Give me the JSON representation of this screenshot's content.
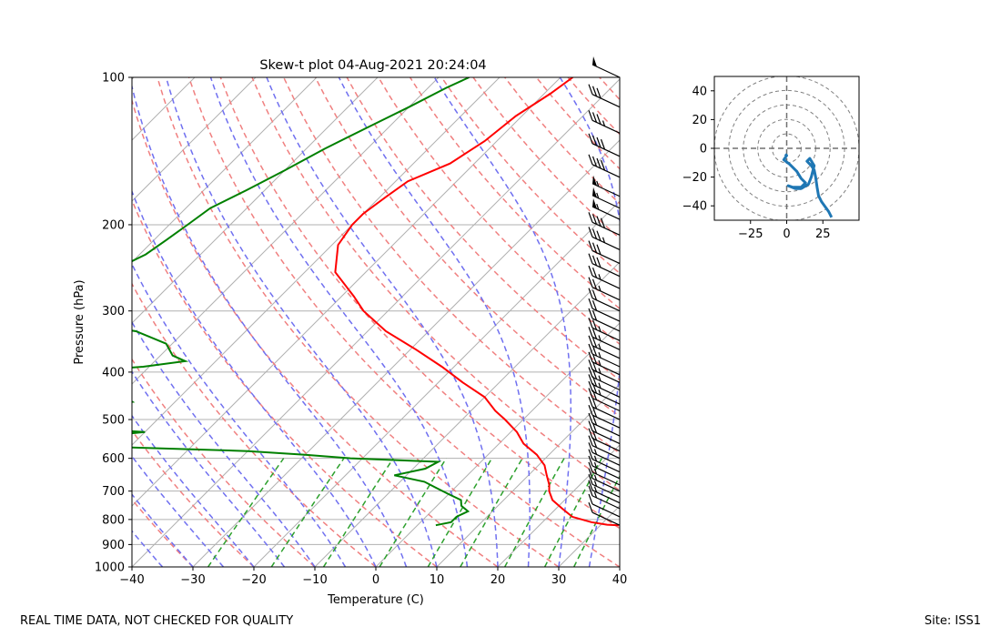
{
  "chart_data": [
    {
      "type": "skew-t",
      "title": "Skew-t plot 04-Aug-2021 20:24:04",
      "xlabel": "Temperature (C)",
      "ylabel": "Pressure (hPa)",
      "xlim": [
        -40,
        40
      ],
      "ylim": [
        1000,
        100
      ],
      "y_scale": "log",
      "x_ticks": [
        -40,
        -30,
        -20,
        -10,
        0,
        10,
        20,
        30,
        40
      ],
      "y_ticks": [
        100,
        200,
        300,
        400,
        500,
        600,
        700,
        800,
        900,
        1000
      ],
      "grid": true,
      "series": [
        {
          "color": "#ff0000",
          "points": [
            [
              100,
              -48
            ],
            [
              108,
              -49
            ],
            [
              120,
              -51
            ],
            [
              135,
              -52
            ],
            [
              150,
              -54
            ],
            [
              163,
              -58
            ],
            [
              175,
              -59
            ],
            [
              190,
              -60
            ],
            [
              200,
              -60
            ],
            [
              220,
              -59
            ],
            [
              250,
              -55
            ],
            [
              280,
              -48
            ],
            [
              300,
              -44
            ],
            [
              330,
              -37
            ],
            [
              360,
              -29
            ],
            [
              390,
              -22
            ],
            [
              420,
              -16
            ],
            [
              450,
              -10
            ],
            [
              480,
              -6
            ],
            [
              500,
              -3
            ],
            [
              530,
              1
            ],
            [
              560,
              4
            ],
            [
              590,
              8
            ],
            [
              600,
              9
            ],
            [
              620,
              11
            ],
            [
              650,
              13
            ],
            [
              680,
              15
            ],
            [
              700,
              16
            ],
            [
              730,
              18
            ],
            [
              760,
              21
            ],
            [
              790,
              24
            ],
            [
              810,
              28
            ],
            [
              820,
              31
            ],
            [
              822,
              33
            ]
          ]
        },
        {
          "color": "#008000",
          "points": [
            [
              100,
              -65
            ],
            [
              105,
              -67
            ],
            [
              115,
              -70
            ],
            [
              125,
              -73
            ],
            [
              140,
              -77
            ],
            [
              155,
              -80
            ],
            [
              170,
              -83
            ],
            [
              185,
              -86
            ],
            [
              200,
              -87
            ],
            [
              215,
              -88
            ],
            [
              230,
              -89
            ],
            [
              250,
              -92
            ],
            [
              270,
              -96
            ],
            [
              290,
              -98
            ],
            [
              300,
              -99
            ],
            [
              310,
              -95
            ],
            [
              320,
              -86
            ],
            [
              330,
              -78
            ],
            [
              350,
              -71
            ],
            [
              370,
              -68
            ],
            [
              380,
              -65
            ],
            [
              390,
              -71
            ],
            [
              400,
              -83
            ],
            [
              415,
              -88
            ],
            [
              430,
              -90
            ],
            [
              445,
              -70
            ],
            [
              460,
              -67
            ],
            [
              475,
              -75
            ],
            [
              490,
              -78
            ],
            [
              500,
              -80
            ],
            [
              510,
              -66
            ],
            [
              520,
              -72
            ],
            [
              530,
              -60
            ],
            [
              540,
              -66
            ],
            [
              550,
              -70
            ],
            [
              560,
              -75
            ],
            [
              570,
              -60
            ],
            [
              580,
              -40
            ],
            [
              590,
              -30
            ],
            [
              600,
              -22
            ],
            [
              610,
              -7
            ],
            [
              630,
              -8
            ],
            [
              650,
              -12
            ],
            [
              670,
              -6
            ],
            [
              690,
              -3
            ],
            [
              710,
              0
            ],
            [
              730,
              3
            ],
            [
              750,
              4
            ],
            [
              770,
              6
            ],
            [
              790,
              5
            ],
            [
              810,
              5
            ],
            [
              822,
              3
            ]
          ]
        }
      ],
      "wind_barbs": [
        {
          "p": 100,
          "speed": 50
        },
        {
          "p": 115,
          "speed": 30
        },
        {
          "p": 130,
          "speed": 35
        },
        {
          "p": 145,
          "speed": 40
        },
        {
          "p": 160,
          "speed": 40
        },
        {
          "p": 175,
          "speed": 55
        },
        {
          "p": 185,
          "speed": 55
        },
        {
          "p": 195,
          "speed": 55
        },
        {
          "p": 210,
          "speed": 40
        },
        {
          "p": 225,
          "speed": 35
        },
        {
          "p": 240,
          "speed": 30
        },
        {
          "p": 255,
          "speed": 30
        },
        {
          "p": 270,
          "speed": 25
        },
        {
          "p": 285,
          "speed": 25
        },
        {
          "p": 300,
          "speed": 20
        },
        {
          "p": 315,
          "speed": 20
        },
        {
          "p": 330,
          "speed": 20
        },
        {
          "p": 345,
          "speed": 25
        },
        {
          "p": 360,
          "speed": 25
        },
        {
          "p": 375,
          "speed": 25
        },
        {
          "p": 390,
          "speed": 25
        },
        {
          "p": 405,
          "speed": 25
        },
        {
          "p": 420,
          "speed": 25
        },
        {
          "p": 435,
          "speed": 25
        },
        {
          "p": 450,
          "speed": 25
        },
        {
          "p": 465,
          "speed": 25
        },
        {
          "p": 480,
          "speed": 20
        },
        {
          "p": 500,
          "speed": 20
        },
        {
          "p": 520,
          "speed": 20
        },
        {
          "p": 540,
          "speed": 20
        },
        {
          "p": 560,
          "speed": 20
        },
        {
          "p": 580,
          "speed": 20
        },
        {
          "p": 600,
          "speed": 20
        },
        {
          "p": 620,
          "speed": 15
        },
        {
          "p": 640,
          "speed": 15
        },
        {
          "p": 660,
          "speed": 15
        },
        {
          "p": 680,
          "speed": 15
        },
        {
          "p": 700,
          "speed": 15
        },
        {
          "p": 720,
          "speed": 15
        },
        {
          "p": 740,
          "speed": 15
        },
        {
          "p": 760,
          "speed": 15
        },
        {
          "p": 790,
          "speed": 10
        },
        {
          "p": 822,
          "speed": 10
        }
      ]
    },
    {
      "type": "hodograph",
      "xlim": [
        -50,
        50
      ],
      "ylim": [
        -50,
        50
      ],
      "x_ticks": [
        -25,
        0,
        25
      ],
      "y_ticks": [
        40,
        20,
        0,
        -20,
        -40
      ],
      "rings": [
        10,
        20,
        30,
        40,
        50
      ],
      "series": [
        {
          "color": "#1f77b4",
          "points": [
            [
              31,
              -48
            ],
            [
              29,
              -44
            ],
            [
              24,
              -37
            ],
            [
              22,
              -33
            ],
            [
              21,
              -27
            ],
            [
              20,
              -20
            ],
            [
              19,
              -15
            ],
            [
              17,
              -12
            ],
            [
              14,
              -9
            ],
            [
              16,
              -7
            ],
            [
              19,
              -12
            ],
            [
              17,
              -20
            ],
            [
              15,
              -25
            ],
            [
              10,
              -28
            ],
            [
              6,
              -28
            ],
            [
              1,
              -26
            ],
            [
              4,
              -27
            ],
            [
              10,
              -27
            ],
            [
              13,
              -24
            ],
            [
              10,
              -21
            ],
            [
              7,
              -16
            ],
            [
              2,
              -11
            ],
            [
              -2,
              -8
            ],
            [
              0,
              -5
            ],
            [
              -1,
              -4
            ]
          ]
        }
      ]
    }
  ],
  "footer": {
    "left": "REAL TIME DATA, NOT CHECKED FOR QUALITY",
    "right": "Site: ISS1"
  }
}
